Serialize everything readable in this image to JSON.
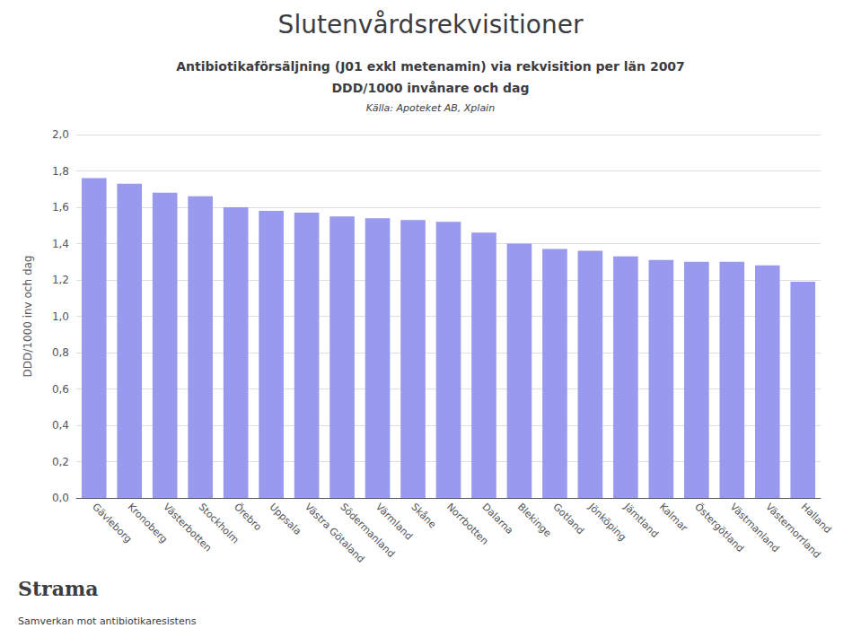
{
  "chart_data": {
    "type": "bar",
    "title": "Slutenvårdsrekvisitioner",
    "subtitle": [
      "Antibiotikaförsäljning (J01 exkl metenamin) via rekvisition per län 2007",
      "DDD/1000 invånare och dag",
      "Källa: Apoteket AB, Xplain"
    ],
    "annotations": [
      "Strama",
      "Samverkan mot antibiotikaresistens"
    ],
    "ylabel": "DDD/1000 inv och dag",
    "categories": [
      "Gävleborg",
      "Kronoberg",
      "Västerbotten",
      "Stockholm",
      "Örebro",
      "Uppsala",
      "Västra Götaland",
      "Södermanland",
      "Värmland",
      "Skåne",
      "Norrbotten",
      "Dalarna",
      "Blekinge",
      "Gotland",
      "Jönköping",
      "Jämtland",
      "Kalmar",
      "Östergötland",
      "Västmanland",
      "Västernorrland",
      "Halland"
    ],
    "values": [
      1.76,
      1.73,
      1.68,
      1.66,
      1.6,
      1.58,
      1.57,
      1.55,
      1.54,
      1.53,
      1.52,
      1.46,
      1.4,
      1.37,
      1.36,
      1.33,
      1.31,
      1.3,
      1.3,
      1.28,
      1.19
    ],
    "color": "#9999EE",
    "ylim": [
      0.0,
      2.0
    ],
    "yticks": [
      {
        "value": 0.0,
        "label": "0,0"
      },
      {
        "value": 0.2,
        "label": "0,2"
      },
      {
        "value": 0.4,
        "label": "0,4"
      },
      {
        "value": 0.6,
        "label": "0,6"
      },
      {
        "value": 0.8,
        "label": "0,8"
      },
      {
        "value": 1.0,
        "label": "1,0"
      },
      {
        "value": 1.2,
        "label": "1,2"
      },
      {
        "value": 1.4,
        "label": "1,4"
      },
      {
        "value": 1.6,
        "label": "1,6"
      },
      {
        "value": 1.8,
        "label": "1,8"
      },
      {
        "value": 2.0,
        "label": "2,0"
      }
    ],
    "grid": true
  }
}
